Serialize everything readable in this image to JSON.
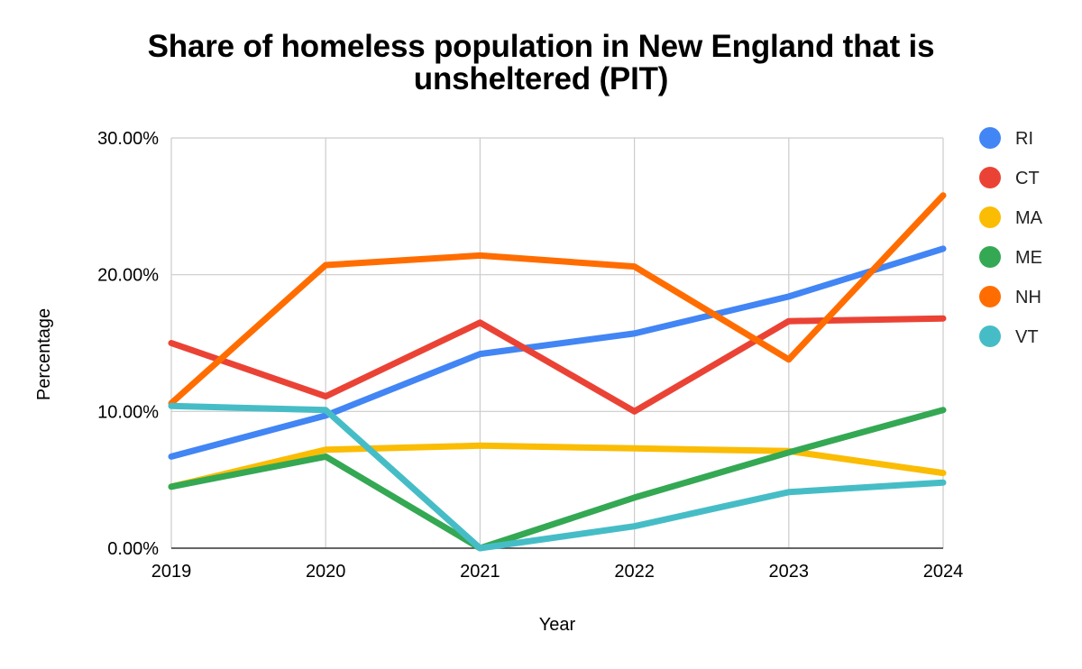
{
  "chart_data": {
    "type": "line",
    "title_lines": [
      "Share of homeless population in New England that is",
      "unsheltered (PIT)"
    ],
    "xlabel": "Year",
    "ylabel": "Percentage",
    "x": [
      "2019",
      "2020",
      "2021",
      "2022",
      "2023",
      "2024"
    ],
    "ylim": [
      0,
      0.3
    ],
    "yticks": [
      "0.00%",
      "10.00%",
      "20.00%",
      "30.00%"
    ],
    "grid": true,
    "legend_position": "right",
    "series": [
      {
        "name": "RI",
        "color": "#4285f4",
        "values": [
          0.067,
          0.097,
          0.142,
          0.157,
          0.184,
          0.219
        ]
      },
      {
        "name": "CT",
        "color": "#ea4335",
        "values": [
          0.15,
          0.111,
          0.165,
          0.1,
          0.166,
          0.168
        ]
      },
      {
        "name": "MA",
        "color": "#fbbc04",
        "values": [
          0.045,
          0.072,
          0.075,
          0.073,
          0.071,
          0.055
        ]
      },
      {
        "name": "ME",
        "color": "#34a853",
        "values": [
          0.045,
          0.067,
          0.0,
          0.037,
          0.07,
          0.101
        ]
      },
      {
        "name": "NH",
        "color": "#ff6d01",
        "values": [
          0.106,
          0.207,
          0.214,
          0.206,
          0.138,
          0.258
        ]
      },
      {
        "name": "VT",
        "color": "#46bdc6",
        "values": [
          0.104,
          0.101,
          0.0,
          0.016,
          0.041,
          0.048
        ]
      }
    ]
  }
}
